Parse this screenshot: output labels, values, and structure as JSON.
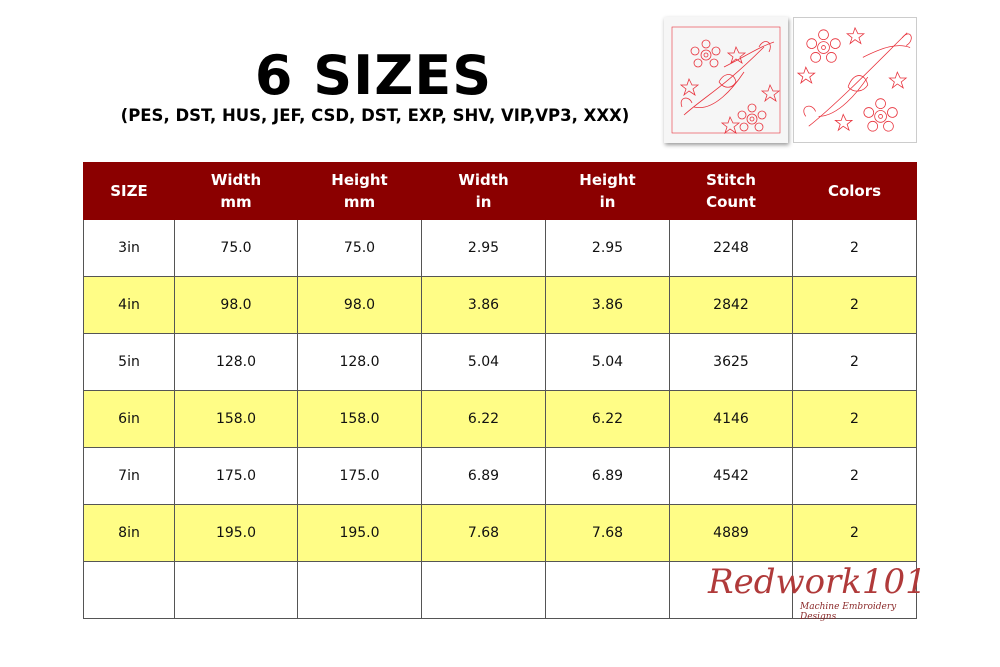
{
  "title": "6 SIZES",
  "subtitle": "(PES, DST, HUS, JEF, CSD, DST, EXP, SHV, VIP,VP3, XXX)",
  "colors": {
    "header": "#8b0000",
    "alt_row": "#fffd86",
    "stitch": "#e8323c"
  },
  "table": {
    "headers": [
      [
        "SIZE",
        ""
      ],
      [
        "Width",
        "mm"
      ],
      [
        "Height",
        "mm"
      ],
      [
        "Width",
        "in"
      ],
      [
        "Height",
        "in"
      ],
      [
        "Stitch",
        "Count"
      ],
      [
        "Colors",
        ""
      ]
    ],
    "rows": [
      [
        "3in",
        "75.0",
        "75.0",
        "2.95",
        "2.95",
        "2248",
        "2"
      ],
      [
        "4in",
        "98.0",
        "98.0",
        "3.86",
        "3.86",
        "2842",
        "2"
      ],
      [
        "5in",
        "128.0",
        "128.0",
        "5.04",
        "5.04",
        "3625",
        "2"
      ],
      [
        "6in",
        "158.0",
        "158.0",
        "6.22",
        "6.22",
        "4146",
        "2"
      ],
      [
        "7in",
        "175.0",
        "175.0",
        "6.89",
        "6.89",
        "4542",
        "2"
      ],
      [
        "8in",
        "195.0",
        "195.0",
        "7.68",
        "7.68",
        "4889",
        "2"
      ],
      [
        "",
        "",
        "",
        "",
        "",
        "",
        ""
      ]
    ]
  },
  "logo": {
    "name": "Redwork101",
    "tagline": "Machine Embroidery Designs"
  }
}
